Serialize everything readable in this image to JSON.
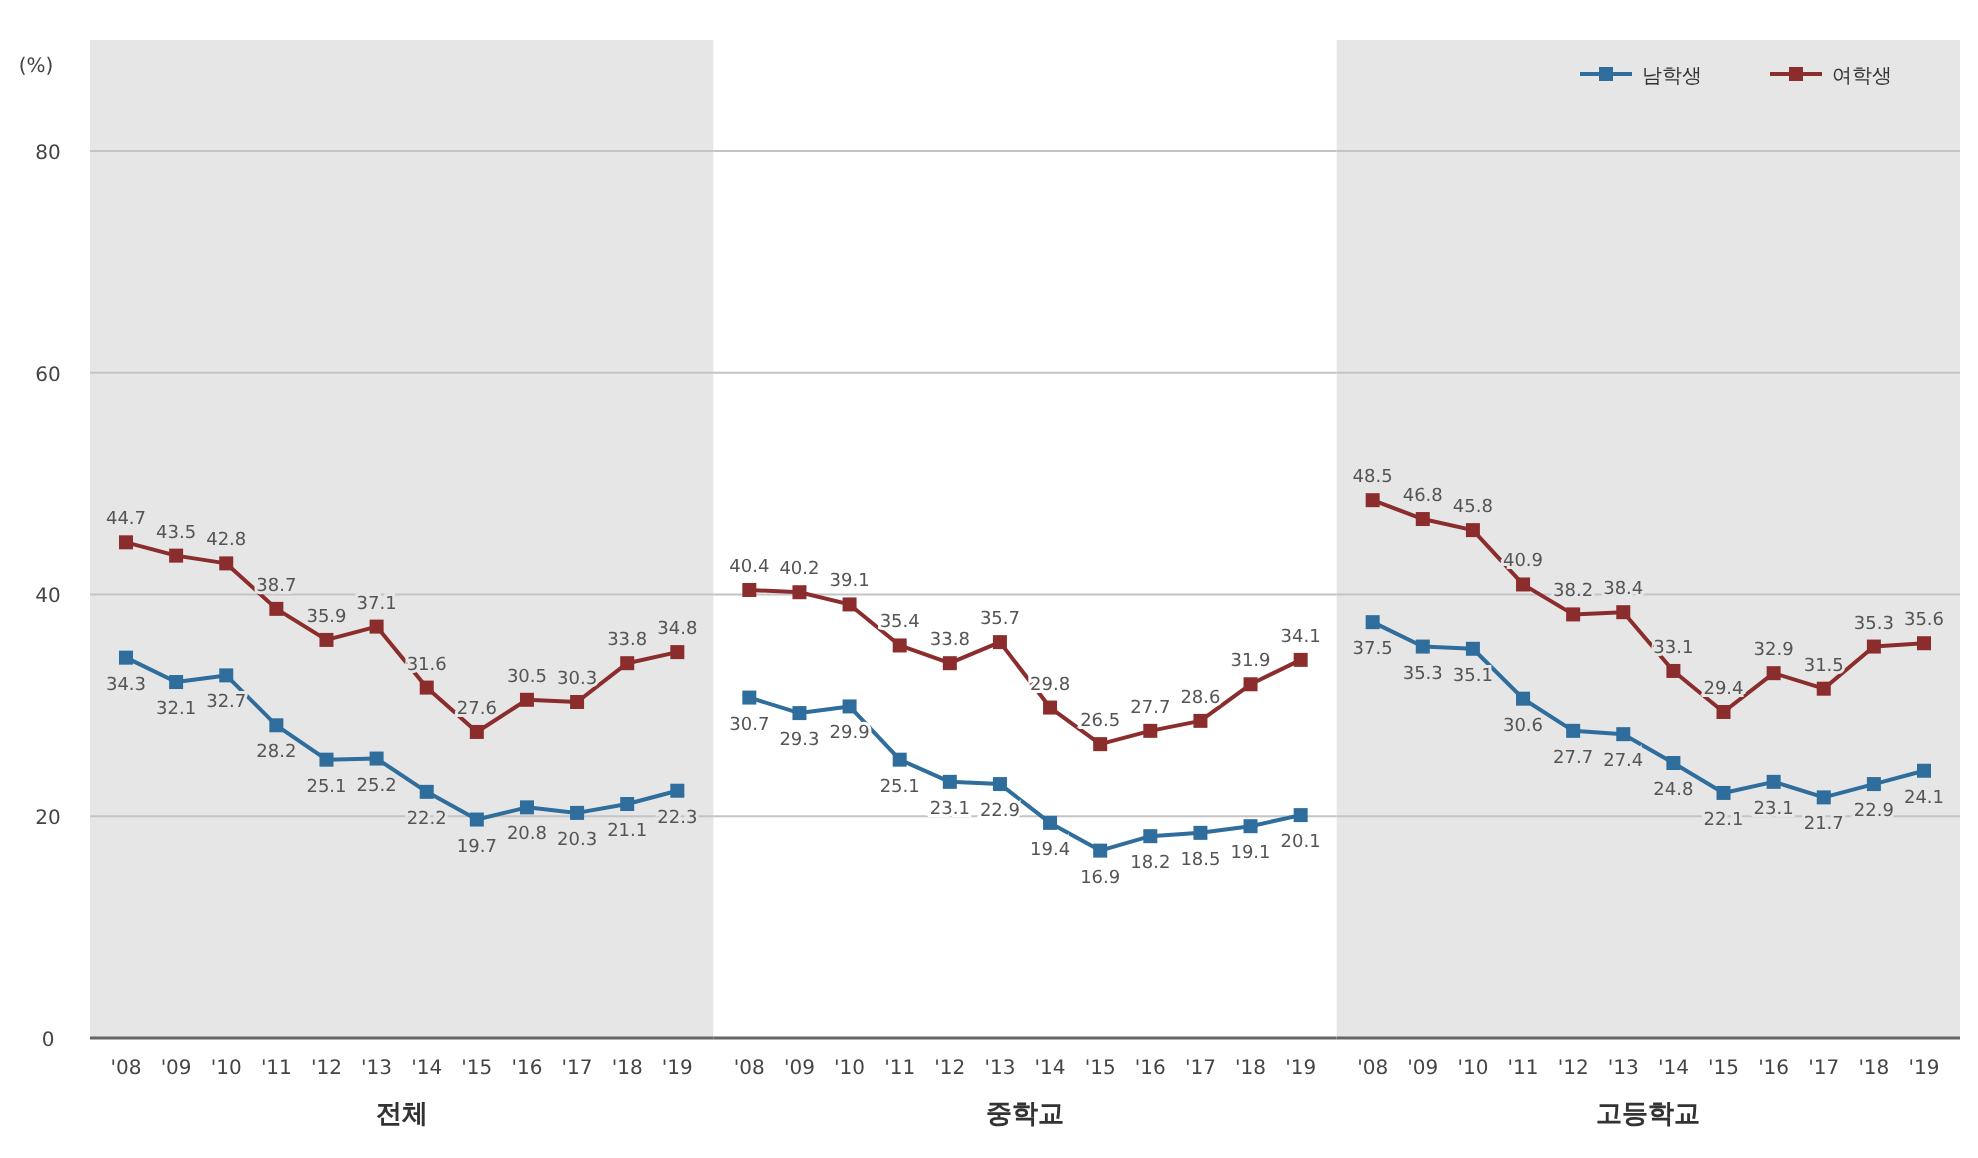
{
  "chart_data": [
    {
      "type": "line",
      "ylabel": "(%)",
      "xlabel": "전체",
      "categories": [
        "'08",
        "'09",
        "'10",
        "'11",
        "'12",
        "'13",
        "'14",
        "'15",
        "'16",
        "'17",
        "'18",
        "'19"
      ],
      "ylim": [
        0,
        90
      ],
      "yticks": [
        0,
        20,
        40,
        60,
        80
      ],
      "grid": "y",
      "marker": "square",
      "data_labels": true,
      "series": [
        {
          "color": "#2f6d9c",
          "values": [
            34.3,
            32.1,
            32.7,
            28.2,
            25.1,
            25.2,
            22.2,
            19.7,
            20.8,
            20.3,
            21.1,
            22.3
          ]
        },
        {
          "color": "#8c2d2d",
          "values": [
            44.7,
            43.5,
            42.8,
            38.7,
            35.9,
            37.1,
            31.6,
            27.6,
            30.5,
            30.3,
            33.8,
            34.8
          ]
        }
      ]
    },
    {
      "type": "line",
      "xlabel": "중학교",
      "categories": [
        "'08",
        "'09",
        "'10",
        "'11",
        "'12",
        "'13",
        "'14",
        "'15",
        "'16",
        "'17",
        "'18",
        "'19"
      ],
      "ylim": [
        0,
        90
      ],
      "yticks": [
        0,
        20,
        40,
        60,
        80
      ],
      "grid": "y",
      "marker": "square",
      "data_labels": true,
      "tick_labels": "x",
      "series": [
        {
          "color": "#2f6d9c",
          "values": [
            30.7,
            29.3,
            29.9,
            25.1,
            23.1,
            22.9,
            19.4,
            16.9,
            18.2,
            18.5,
            19.1,
            20.1
          ]
        },
        {
          "color": "#8c2d2d",
          "values": [
            40.4,
            40.2,
            39.1,
            35.4,
            33.8,
            35.7,
            29.8,
            26.5,
            27.7,
            28.6,
            31.9,
            34.1
          ]
        }
      ]
    },
    {
      "type": "line",
      "xlabel": "고등학교",
      "categories": [
        "'08",
        "'09",
        "'10",
        "'11",
        "'12",
        "'13",
        "'14",
        "'15",
        "'16",
        "'17",
        "'18",
        "'19"
      ],
      "ylim": [
        0,
        90
      ],
      "yticks": [
        0,
        20,
        40,
        60,
        80
      ],
      "grid": "y",
      "marker": "square",
      "data_labels": true,
      "tick_labels": "x",
      "legend": "top right",
      "series": [
        {
          "name": "남학생",
          "color": "#2f6d9c",
          "values": [
            37.5,
            35.3,
            35.1,
            30.6,
            27.7,
            27.4,
            24.8,
            22.1,
            23.1,
            21.7,
            22.9,
            24.1
          ]
        },
        {
          "name": "여학생",
          "color": "#8c2d2d",
          "values": [
            48.5,
            46.8,
            45.8,
            40.9,
            38.2,
            38.4,
            33.1,
            29.4,
            32.9,
            31.5,
            35.3,
            35.6
          ]
        }
      ]
    }
  ]
}
